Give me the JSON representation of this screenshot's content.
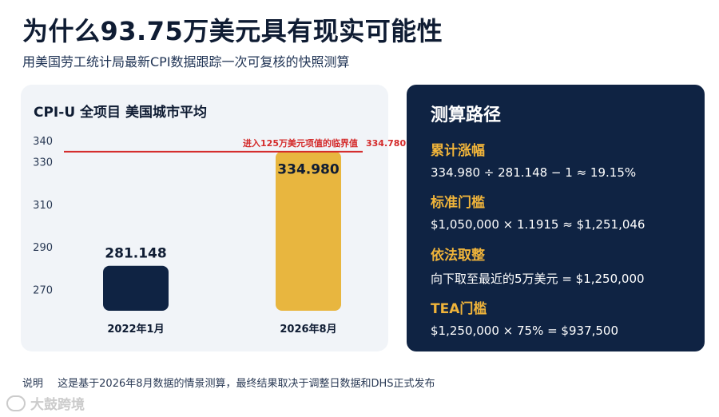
{
  "header": {
    "title": "为什么93.75万美元具有现实可能性",
    "subtitle": "用美国劳工统计局最新CPI数据跟踪一次可复核的快照测算"
  },
  "chart_data": {
    "type": "bar",
    "title": "CPI-U 全项目 美国城市平均",
    "categories": [
      "2022年1月",
      "2026年8月"
    ],
    "values": [
      281.148,
      334.98
    ],
    "value_labels": [
      "281.148",
      "334.980"
    ],
    "bar_colors": [
      "#0f2343",
      "#e8b63f"
    ],
    "ylim": [
      260,
      340
    ],
    "yticks": [
      270,
      290,
      310,
      330,
      340
    ],
    "grid": false,
    "reference_line": {
      "value": 334.78,
      "label": "进入125万美元项值的临界值",
      "value_label": "334.780",
      "color": "#d42a2a"
    }
  },
  "panel": {
    "title": "测算路径",
    "steps": [
      {
        "label": "累计涨幅",
        "formula": "334.980 ÷ 281.148 − 1 ≈ 19.15%"
      },
      {
        "label": "标准门槛",
        "formula": "$1,050,000 × 1.1915 ≈ $1,251,046"
      },
      {
        "label": "依法取整",
        "formula": "向下取至最近的5万美元 = $1,250,000"
      },
      {
        "label": "TEA门槛",
        "formula": "$1,250,000 × 75% = $937,500"
      }
    ]
  },
  "note": {
    "label": "说明",
    "text": "这是基于2026年8月数据的情景测算，最终结果取决于调整日数据和DHS正式发布"
  },
  "watermark": {
    "text": "大鼓跨境"
  }
}
